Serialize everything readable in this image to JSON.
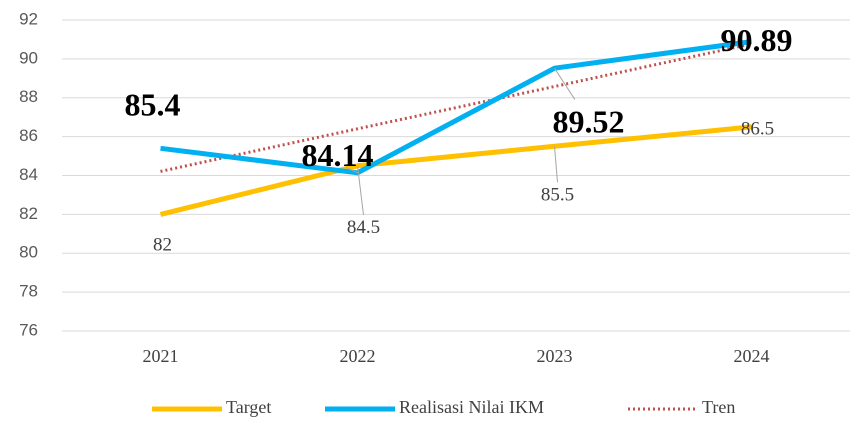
{
  "chart_data": {
    "type": "line",
    "categories": [
      "2021",
      "2022",
      "2023",
      "2024"
    ],
    "series": [
      {
        "name": "Target",
        "color": "#FFC000",
        "values": [
          82,
          84.5,
          85.5,
          86.5
        ]
      },
      {
        "name": "Realisasi Nilai IKM",
        "color": "#00B0F0",
        "values": [
          85.4,
          84.14,
          89.52,
          90.89
        ]
      },
      {
        "name": "Tren",
        "color": "#C0504D",
        "values": [
          84.21,
          86.4,
          88.58,
          90.77
        ],
        "dash": "dotted"
      }
    ],
    "ylim": [
      76,
      92
    ],
    "yticks": [
      76,
      78,
      80,
      82,
      84,
      86,
      88,
      90,
      92
    ],
    "grid": true,
    "legend": "bottom"
  }
}
